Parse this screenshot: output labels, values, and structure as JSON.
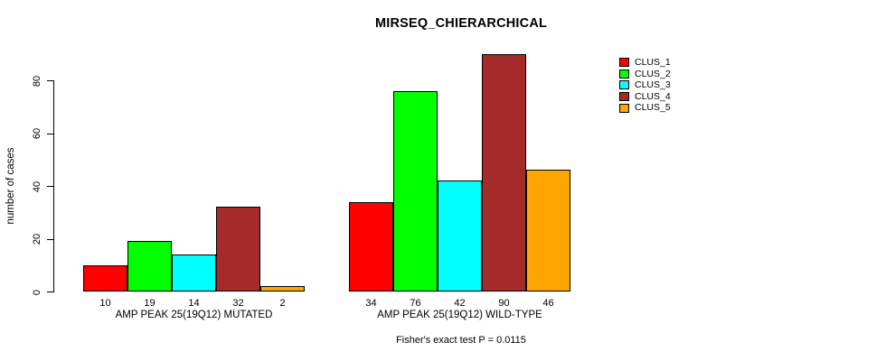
{
  "chart_data": {
    "type": "bar",
    "title": "MIRSEQ_CHIERARCHICAL",
    "ylabel": "number of cases",
    "footnote": "Fisher's exact test P = 0.0115",
    "ylim": [
      0,
      92
    ],
    "yticks": [
      0,
      20,
      40,
      60,
      80
    ],
    "grid": false,
    "legend_position": "top-right",
    "series": [
      "CLUS_1",
      "CLUS_2",
      "CLUS_3",
      "CLUS_4",
      "CLUS_5"
    ],
    "colors": [
      "#ff0000",
      "#00ff00",
      "#00ffff",
      "#a52a2a",
      "#ffa500"
    ],
    "bar_value_labels": true,
    "groups": [
      {
        "label": "AMP PEAK 25(19Q12) MUTATED",
        "values": [
          10,
          19,
          14,
          32,
          2
        ]
      },
      {
        "label": "AMP PEAK 25(19Q12) WILD-TYPE",
        "values": [
          34,
          76,
          42,
          90,
          46
        ]
      }
    ],
    "text_color": "#000000",
    "background_color": "#ffffff"
  }
}
